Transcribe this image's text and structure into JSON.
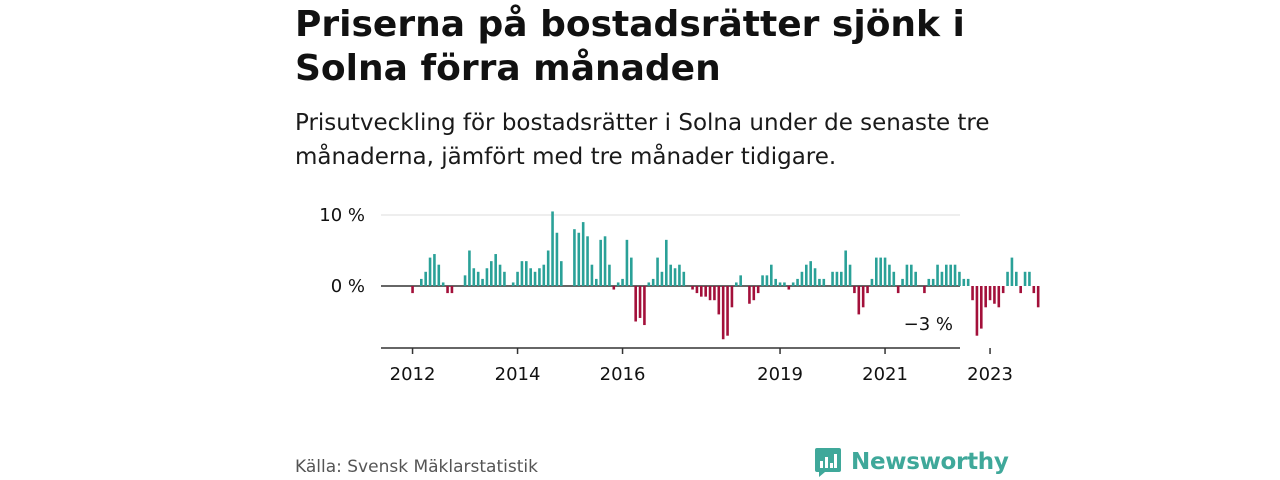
{
  "title": "Priserna på bostadsrätter sjönk i Solna förra månaden",
  "subtitle": "Prisutveckling för bostadsrätter i Solna under de senaste tre månaderna, jämfört med tre månader tidigare.",
  "source": "Källa: Svensk Mäklarstatistik",
  "brand": "Newsworthy",
  "colors": {
    "positive": "#2aa198",
    "negative": "#a3103a",
    "brand": "#3fa89a"
  },
  "chart_data": {
    "type": "bar",
    "ylabel": "",
    "xlabel": "",
    "ylim": [
      -8.5,
      10.5
    ],
    "yticks": [
      {
        "value": 10,
        "label": "10 %"
      },
      {
        "value": 0,
        "label": "0 %"
      }
    ],
    "xticks": [
      {
        "index": 6,
        "label": "2012"
      },
      {
        "index": 30,
        "label": "2014"
      },
      {
        "index": 54,
        "label": "2016"
      },
      {
        "index": 90,
        "label": "2019"
      },
      {
        "index": 114,
        "label": "2021"
      },
      {
        "index": 138,
        "label": "2023"
      }
    ],
    "annotation": "−3 %",
    "series": [
      {
        "name": "Prisutveckling",
        "values": [
          0,
          0,
          0,
          0,
          0,
          0,
          -1,
          0,
          1,
          2,
          4,
          4.5,
          3,
          0.5,
          -1,
          -1,
          0,
          0,
          1.5,
          5,
          2.5,
          2,
          1,
          2.5,
          3.5,
          4.5,
          3,
          2,
          0,
          0.5,
          2,
          3.5,
          3.5,
          2.5,
          2,
          2.5,
          3,
          5,
          10.5,
          7.5,
          3.5,
          0,
          0,
          8,
          7.5,
          9,
          7,
          3,
          1,
          6.5,
          7,
          3,
          -0.5,
          0.5,
          1,
          6.5,
          4,
          -5,
          -4.5,
          -5.5,
          0.5,
          1,
          4,
          2,
          6.5,
          3,
          2.5,
          3,
          2,
          0,
          -0.5,
          -1,
          -1.5,
          -1.5,
          -2,
          -2,
          -4,
          -7.5,
          -7,
          -3,
          0.5,
          1.5,
          0,
          -2.5,
          -2,
          -1,
          1.5,
          1.5,
          3,
          1,
          0.5,
          0.5,
          -0.5,
          0.5,
          1,
          2,
          3,
          3.5,
          2.5,
          1,
          1,
          0,
          2,
          2,
          2,
          5,
          3,
          -1,
          -4,
          -3,
          -1,
          1,
          4,
          4,
          4,
          3,
          2,
          -1,
          1,
          3,
          3,
          2,
          0,
          -1,
          1,
          1,
          3,
          2,
          3,
          3,
          3,
          2,
          1,
          1,
          -2,
          -7,
          -6,
          -3,
          -2,
          -2.5,
          -3,
          -1,
          2,
          4,
          2,
          -1,
          2,
          2,
          -1,
          -3
        ]
      }
    ]
  }
}
